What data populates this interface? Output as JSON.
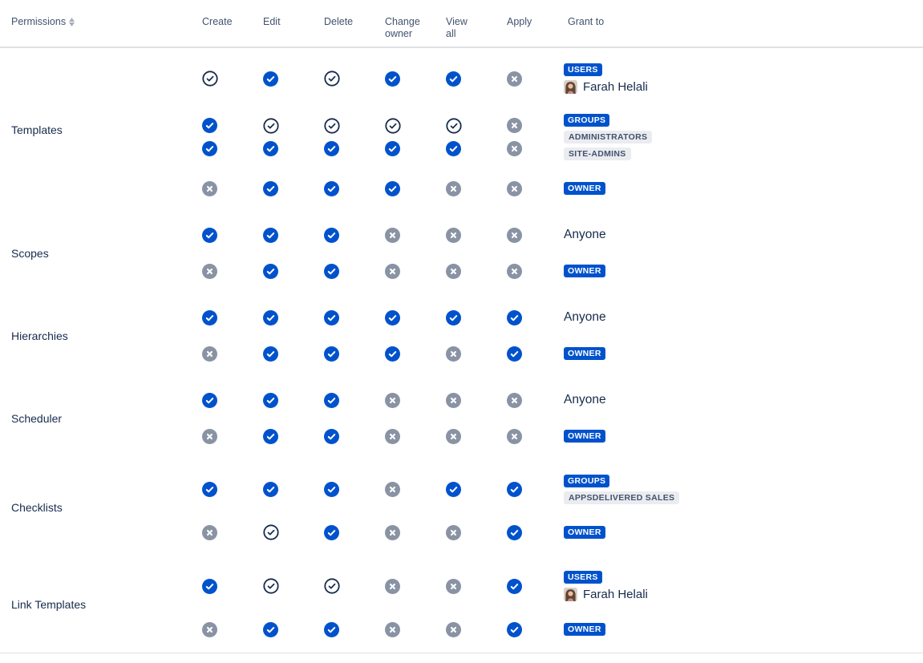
{
  "header": {
    "permissions_label": "Permissions",
    "sort_icon": "sort-arrows",
    "columns": [
      "Create",
      "Edit",
      "Delete",
      "Change\nowner",
      "View\nall",
      "Apply",
      "Grant to"
    ]
  },
  "colors": {
    "accent_blue": "#0052CC",
    "disabled_gray": "#8993A4",
    "outline_navy": "#172B4D",
    "chip_bg": "#EBECF0",
    "chip_text": "#42526E",
    "header_text": "#42526E",
    "border": "#DFE1E6"
  },
  "icon_legend": {
    "check-filled": "check-circle-filled-icon",
    "check-outline": "check-circle-outline-icon",
    "cross-gray": "cross-circle-icon"
  },
  "permissions": [
    {
      "name": "Templates",
      "rules": [
        {
          "grant": {
            "badge": "USERS",
            "user": {
              "name": "Farah Helali",
              "avatar": "woman-portrait"
            }
          },
          "rows": [
            [
              "check-outline",
              "check-filled",
              "check-outline",
              "check-filled",
              "check-filled",
              "cross-gray"
            ]
          ]
        },
        {
          "grant": {
            "badge": "GROUPS",
            "chips": [
              "ADMINISTRATORS",
              "SITE-ADMINS"
            ]
          },
          "rows": [
            [
              "check-filled",
              "check-outline",
              "check-outline",
              "check-outline",
              "check-outline",
              "cross-gray"
            ],
            [
              "check-filled",
              "check-filled",
              "check-filled",
              "check-filled",
              "check-filled",
              "cross-gray"
            ]
          ]
        },
        {
          "grant": {
            "badge": "OWNER"
          },
          "rows": [
            [
              "cross-gray",
              "check-filled",
              "check-filled",
              "check-filled",
              "cross-gray",
              "cross-gray"
            ]
          ]
        }
      ]
    },
    {
      "name": "Scopes",
      "rules": [
        {
          "grant": {
            "text": "Anyone"
          },
          "rows": [
            [
              "check-filled",
              "check-filled",
              "check-filled",
              "cross-gray",
              "cross-gray",
              "cross-gray"
            ]
          ]
        },
        {
          "grant": {
            "badge": "OWNER"
          },
          "rows": [
            [
              "cross-gray",
              "check-filled",
              "check-filled",
              "cross-gray",
              "cross-gray",
              "cross-gray"
            ]
          ]
        }
      ]
    },
    {
      "name": "Hierarchies",
      "rules": [
        {
          "grant": {
            "text": "Anyone"
          },
          "rows": [
            [
              "check-filled",
              "check-filled",
              "check-filled",
              "check-filled",
              "check-filled",
              "check-filled"
            ]
          ]
        },
        {
          "grant": {
            "badge": "OWNER"
          },
          "rows": [
            [
              "cross-gray",
              "check-filled",
              "check-filled",
              "check-filled",
              "cross-gray",
              "check-filled"
            ]
          ]
        }
      ]
    },
    {
      "name": "Scheduler",
      "rules": [
        {
          "grant": {
            "text": "Anyone"
          },
          "rows": [
            [
              "check-filled",
              "check-filled",
              "check-filled",
              "cross-gray",
              "cross-gray",
              "cross-gray"
            ]
          ]
        },
        {
          "grant": {
            "badge": "OWNER"
          },
          "rows": [
            [
              "cross-gray",
              "check-filled",
              "check-filled",
              "cross-gray",
              "cross-gray",
              "cross-gray"
            ]
          ]
        }
      ]
    },
    {
      "name": "Checklists",
      "rules": [
        {
          "grant": {
            "badge": "GROUPS",
            "chips": [
              "APPSDELIVERED SALES"
            ]
          },
          "rows": [
            [
              "check-filled",
              "check-filled",
              "check-filled",
              "cross-gray",
              "check-filled",
              "check-filled"
            ]
          ]
        },
        {
          "grant": {
            "badge": "OWNER"
          },
          "rows": [
            [
              "cross-gray",
              "check-outline",
              "check-filled",
              "cross-gray",
              "cross-gray",
              "check-filled"
            ]
          ]
        }
      ]
    },
    {
      "name": "Link Templates",
      "rules": [
        {
          "grant": {
            "badge": "USERS",
            "user": {
              "name": "Farah Helali",
              "avatar": "woman-portrait"
            }
          },
          "rows": [
            [
              "check-filled",
              "check-outline",
              "check-outline",
              "cross-gray",
              "cross-gray",
              "check-filled"
            ]
          ]
        },
        {
          "grant": {
            "badge": "OWNER"
          },
          "rows": [
            [
              "cross-gray",
              "check-filled",
              "check-filled",
              "cross-gray",
              "cross-gray",
              "check-filled"
            ]
          ]
        }
      ]
    }
  ]
}
